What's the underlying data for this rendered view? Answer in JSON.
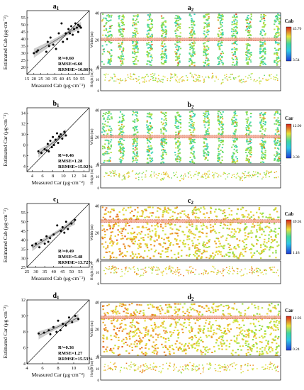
{
  "palette": {
    "pointColor": "#000000",
    "bandColor": "#bdbdbd",
    "lineColor": "#555555",
    "mapLow": "#1e3bd6",
    "mapMid": "#3fd6a0",
    "mapHigh": "#d9241b",
    "stripeColor": "#f0a08a"
  },
  "chart_data": [
    {
      "type": "scatter",
      "panel_label": "a",
      "panel_sub": "1",
      "xlabel": "Measured Cab (μg·cm⁻²)",
      "ylabel": "Estimated Cab (μg·cm⁻²)",
      "xlim": [
        15,
        60
      ],
      "ylim": [
        15,
        60
      ],
      "xticks": [
        15,
        20,
        25,
        30,
        35,
        40,
        45,
        50,
        55
      ],
      "yticks": [
        20,
        25,
        30,
        35,
        40,
        45,
        50,
        55
      ],
      "stats": [
        "R²=0.60",
        "RMSE=6.60",
        "RRMSE=16.86%"
      ],
      "x": [
        20,
        22,
        23,
        29,
        30,
        31,
        32,
        34,
        36,
        38,
        40,
        41,
        43,
        44,
        45,
        46,
        47,
        48,
        49,
        50,
        51,
        52,
        52,
        53,
        54
      ],
      "y": [
        30,
        31,
        32,
        31,
        38,
        35,
        41,
        36,
        33,
        44,
        51,
        38,
        44,
        40,
        47,
        44,
        49,
        43,
        47,
        51,
        48,
        45,
        50,
        49,
        48
      ]
    },
    {
      "type": "scatter",
      "panel_label": "b",
      "panel_sub": "1",
      "xlabel": "Measured Car (μg·cm⁻²)",
      "ylabel": "Estimated Car (μg·cm⁻²)",
      "xlim": [
        3,
        15
      ],
      "ylim": [
        3,
        15
      ],
      "xticks": [
        4,
        6,
        8,
        10,
        12,
        14
      ],
      "yticks": [
        4,
        6,
        8,
        10,
        12,
        14
      ],
      "stats": [
        "R²=0.46",
        "RMSE=1.28",
        "RRMSE=15.92%"
      ],
      "x": [
        5.2,
        5.8,
        6.4,
        6.8,
        7.0,
        7.2,
        7.5,
        7.8,
        8.0,
        8.2,
        8.5,
        8.8,
        9.0,
        9.2,
        9.5,
        9.8,
        10.2,
        10.5
      ],
      "y": [
        6.8,
        6.5,
        7.2,
        7.0,
        8.2,
        6.8,
        8.8,
        7.6,
        9.5,
        8.0,
        9.0,
        10.2,
        8.4,
        9.6,
        10.0,
        9.2,
        10.5,
        9.8
      ]
    },
    {
      "type": "scatter",
      "panel_label": "c",
      "panel_sub": "1",
      "xlabel": "Measured Cab (μg·cm⁻²)",
      "ylabel": "Estimated Cab (μg·cm⁻²)",
      "xlim": [
        25,
        60
      ],
      "ylim": [
        25,
        60
      ],
      "xticks": [
        25,
        30,
        35,
        40,
        45,
        50,
        55
      ],
      "yticks": [
        25,
        30,
        35,
        40,
        45,
        50,
        55
      ],
      "stats": [
        "R²=0.49",
        "RMSE=5.48",
        "RRMSE=13.72%"
      ],
      "x": [
        28,
        30,
        32,
        33,
        35,
        36,
        37,
        38,
        40,
        42,
        44,
        45,
        46,
        47,
        48,
        50,
        52
      ],
      "y": [
        37,
        38,
        36,
        40,
        38,
        42,
        39,
        41,
        43,
        48,
        45,
        47,
        44,
        50,
        46,
        49,
        51
      ]
    },
    {
      "type": "scatter",
      "panel_label": "d",
      "panel_sub": "1",
      "xlabel": "Measured Car (μg·cm⁻²)",
      "ylabel": "Estimated Car (μg·cm⁻²)",
      "xlim": [
        4,
        12
      ],
      "ylim": [
        4,
        12
      ],
      "xticks": [
        4,
        6,
        8,
        10,
        12
      ],
      "yticks": [
        4,
        6,
        8,
        10,
        12
      ],
      "stats": [
        "R²=0.36",
        "RMSE=1.27",
        "RRMSE=15.53%"
      ],
      "x": [
        5.5,
        6.2,
        6.8,
        7.0,
        7.4,
        7.8,
        8.0,
        8.3,
        8.6,
        9.0,
        9.4,
        9.8,
        10.2,
        10.6
      ],
      "y": [
        7.8,
        7.9,
        8.2,
        7.7,
        8.6,
        8.0,
        9.4,
        8.2,
        9.0,
        8.8,
        9.8,
        9.2,
        10.0,
        9.6
      ]
    }
  ],
  "maps": [
    {
      "panel_label": "a",
      "panel_sub": "2",
      "variable": "Cab",
      "cb_max": "45.70",
      "cb_min": "3.54",
      "width_label": "Width (m)",
      "height_label": "Height (m)",
      "width_ticks": [
        "0",
        "20",
        "40"
      ],
      "height_ticks": [
        "0",
        "10",
        "20"
      ],
      "style": "rows",
      "warmth": 0.35
    },
    {
      "panel_label": "b",
      "panel_sub": "2",
      "variable": "Car",
      "cb_max": "12.90",
      "cb_min": "3.38",
      "width_label": "Width (m)",
      "height_label": "Height (m)",
      "width_ticks": [
        "0",
        "20",
        "40"
      ],
      "height_ticks": [
        "0",
        "10",
        "20"
      ],
      "style": "rows",
      "warmth": 0.3
    },
    {
      "panel_label": "c",
      "panel_sub": "2",
      "variable": "Cab",
      "cb_max": "49.94",
      "cb_min": "1.18",
      "width_label": "Width (m)",
      "height_label": "Height (m)",
      "width_ticks": [
        "0",
        "20",
        "40"
      ],
      "height_ticks": [
        "0",
        "10",
        "20"
      ],
      "style": "dense",
      "warmth": 0.72
    },
    {
      "panel_label": "d",
      "panel_sub": "2",
      "variable": "Car",
      "cb_max": "12.93",
      "cb_min": "0.24",
      "width_label": "Width (m)",
      "height_label": "Height (m)",
      "width_ticks": [
        "0",
        "20",
        "40"
      ],
      "height_ticks": [
        "0",
        "10",
        "20"
      ],
      "style": "dense",
      "warmth": 0.7
    }
  ]
}
